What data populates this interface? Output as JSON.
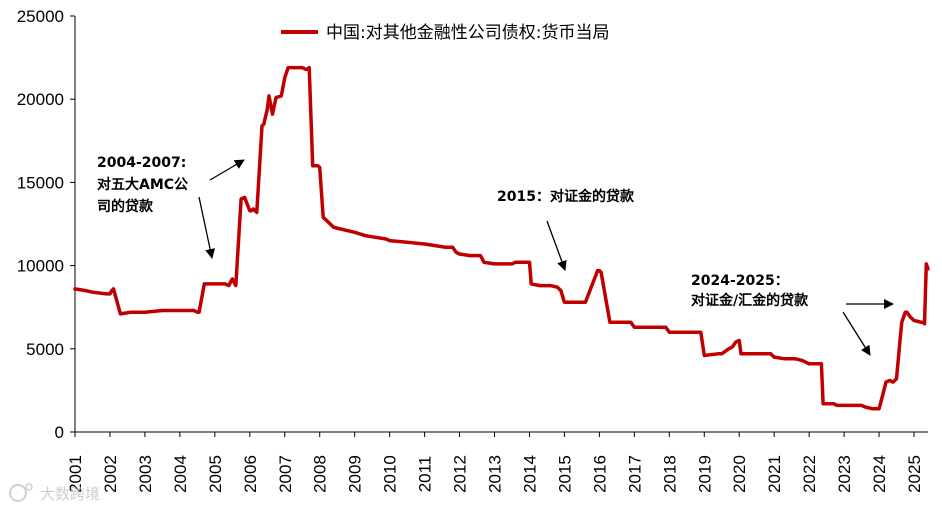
{
  "watermark": "大数跨境",
  "chart_data": {
    "type": "line",
    "title": "",
    "xlabel": "",
    "ylabel": "",
    "ylim": [
      0,
      25000
    ],
    "xlim": [
      2001,
      2025.4
    ],
    "yticks": [
      0,
      5000,
      10000,
      15000,
      20000,
      25000
    ],
    "xticks": [
      "2001",
      "2002",
      "2003",
      "2004",
      "2005",
      "2006",
      "2007",
      "2008",
      "2009",
      "2010",
      "2011",
      "2012",
      "2013",
      "2014",
      "2015",
      "2016",
      "2017",
      "2018",
      "2019",
      "2020",
      "2021",
      "2022",
      "2023",
      "2024",
      "2025"
    ],
    "grid": false,
    "legend_position": "top-center",
    "series": [
      {
        "name": "中国:对其他金融性公司债权:货币当局",
        "color": "#c00000",
        "x": [
          2001.0,
          2001.3,
          2001.5,
          2001.9,
          2002.0,
          2002.05,
          2002.1,
          2002.3,
          2002.6,
          2003.0,
          2003.5,
          2004.0,
          2004.4,
          2004.5,
          2004.55,
          2004.7,
          2005.0,
          2005.2,
          2005.3,
          2005.4,
          2005.5,
          2005.6,
          2005.75,
          2005.85,
          2006.0,
          2006.05,
          2006.1,
          2006.2,
          2006.35,
          2006.4,
          2006.5,
          2006.55,
          2006.65,
          2006.75,
          2006.9,
          2007.0,
          2007.1,
          2007.3,
          2007.5,
          2007.6,
          2007.65,
          2007.7,
          2007.8,
          2007.9,
          2007.95,
          2008.0,
          2008.1,
          2008.4,
          2008.6,
          2008.8,
          2009.0,
          2009.3,
          2009.6,
          2009.9,
          2010.0,
          2010.5,
          2011.0,
          2011.3,
          2011.6,
          2011.8,
          2011.9,
          2012.0,
          2012.3,
          2012.6,
          2012.7,
          2013.0,
          2013.5,
          2013.6,
          2014.0,
          2014.05,
          2014.3,
          2014.6,
          2014.8,
          2014.9,
          2015.0,
          2015.5,
          2015.55,
          2015.6,
          2015.95,
          2016.0,
          2016.05,
          2016.3,
          2016.6,
          2016.9,
          2017.0,
          2017.3,
          2017.6,
          2017.9,
          2018.0,
          2018.3,
          2018.6,
          2018.85,
          2018.9,
          2019.0,
          2019.4,
          2019.5,
          2019.7,
          2019.8,
          2019.9,
          2020.0,
          2020.05,
          2020.3,
          2020.6,
          2020.9,
          2021.0,
          2021.3,
          2021.6,
          2021.8,
          2022.0,
          2022.3,
          2022.35,
          2022.4,
          2022.5,
          2022.7,
          2022.8,
          2023.0,
          2023.4,
          2023.5,
          2023.6,
          2023.8,
          2024.0,
          2024.1,
          2024.2,
          2024.3,
          2024.4,
          2024.5,
          2024.6,
          2024.65,
          2024.75,
          2024.8,
          2024.9,
          2025.0,
          2025.2,
          2025.25,
          2025.3,
          2025.35,
          2025.4
        ],
        "values": [
          8600,
          8500,
          8400,
          8300,
          8300,
          8500,
          8600,
          7100,
          7200,
          7200,
          7300,
          7300,
          7300,
          7200,
          7200,
          8900,
          8900,
          8900,
          8900,
          8800,
          9200,
          8800,
          14000,
          14100,
          13300,
          13300,
          13400,
          13200,
          18400,
          18500,
          19400,
          20200,
          19100,
          20100,
          20200,
          21300,
          21900,
          21900,
          21900,
          21800,
          21800,
          21900,
          16000,
          16000,
          16000,
          15900,
          12900,
          12300,
          12200,
          12100,
          12000,
          11800,
          11700,
          11600,
          11500,
          11400,
          11300,
          11200,
          11100,
          11100,
          10800,
          10700,
          10600,
          10600,
          10200,
          10100,
          10100,
          10200,
          10200,
          8900,
          8800,
          8800,
          8700,
          8500,
          7800,
          7800,
          7800,
          7800,
          9700,
          9700,
          9600,
          6600,
          6600,
          6600,
          6300,
          6300,
          6300,
          6300,
          6000,
          6000,
          6000,
          6000,
          6000,
          4600,
          4700,
          4700,
          5000,
          5100,
          5400,
          5500,
          4700,
          4700,
          4700,
          4700,
          4500,
          4400,
          4400,
          4300,
          4100,
          4100,
          4100,
          1700,
          1700,
          1700,
          1600,
          1600,
          1600,
          1600,
          1500,
          1400,
          1400,
          2200,
          3000,
          3100,
          3000,
          3200,
          5500,
          6600,
          7200,
          7200,
          6900,
          6700,
          6600,
          6600,
          6500,
          10100,
          9800
        ]
      }
    ],
    "annotations": [
      {
        "lines": [
          "2004-2007:",
          "对五大AMC公",
          "司的贷款"
        ]
      },
      {
        "lines": [
          "2015：对证金的贷款"
        ]
      },
      {
        "lines": [
          "2024-2025：",
          "对证金/汇金的贷款"
        ]
      }
    ]
  }
}
